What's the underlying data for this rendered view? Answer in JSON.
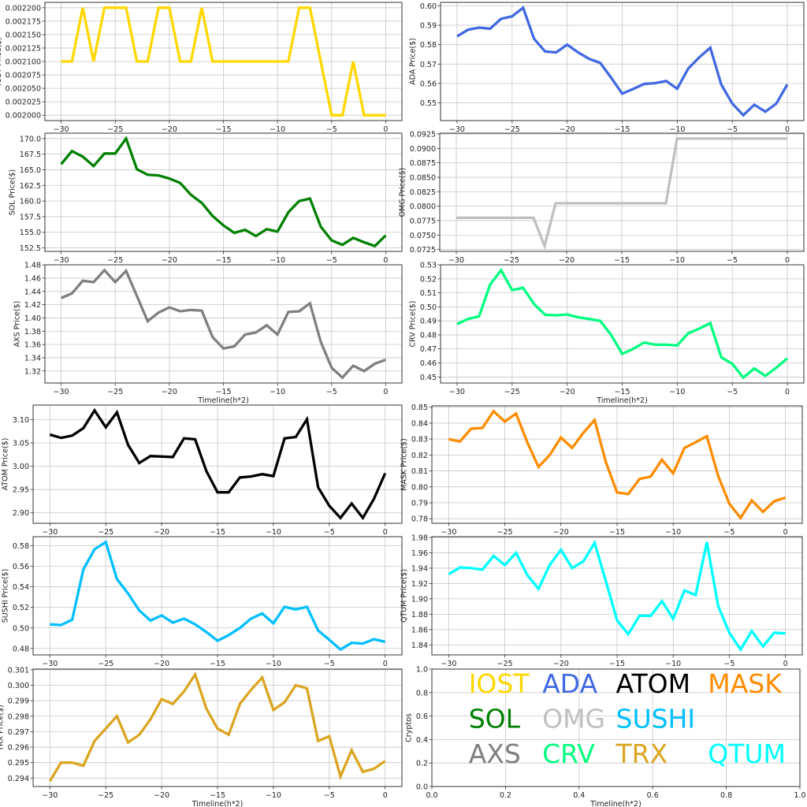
{
  "chart_data": [
    {
      "type": "line",
      "name": "IOST",
      "ylabel": "IOST Price($)",
      "xlabel": "",
      "color": "#FFD700",
      "x": [
        -30,
        -29,
        -28,
        -27,
        -26,
        -25,
        -24,
        -23,
        -22,
        -21,
        -20,
        -19,
        -18,
        -17,
        -16,
        -15,
        -14,
        -13,
        -12,
        -11,
        -10,
        -9,
        -8,
        -7,
        -6,
        -5,
        -4,
        -3,
        -2,
        -1,
        0
      ],
      "y": [
        0.0021,
        0.0021,
        0.0022,
        0.0021,
        0.0022,
        0.0022,
        0.0022,
        0.0021,
        0.0021,
        0.0022,
        0.0022,
        0.0021,
        0.0021,
        0.0022,
        0.0021,
        0.0021,
        0.0021,
        0.0021,
        0.0021,
        0.0021,
        0.0021,
        0.0021,
        0.0022,
        0.0022,
        0.0021,
        0.002,
        0.002,
        0.0021,
        0.002,
        0.002,
        0.002
      ],
      "yticks": [
        "0.002000",
        "0.002025",
        "0.002050",
        "0.002075",
        "0.002100",
        "0.002125",
        "0.002150",
        "0.002175",
        "0.002200"
      ],
      "xticks": [
        "−30",
        "−25",
        "−20",
        "−15",
        "−10",
        "−5",
        "0"
      ]
    },
    {
      "type": "line",
      "name": "ADA",
      "ylabel": "ADA  Price($)",
      "xlabel": "",
      "color": "#4169E1",
      "x": [
        -30,
        -29,
        -28,
        -27,
        -26,
        -25,
        -24,
        -23,
        -22,
        -21,
        -20,
        -19,
        -18,
        -17,
        -16,
        -15,
        -14,
        -13,
        -12,
        -11,
        -10,
        -9,
        -8,
        -7,
        -6,
        -5,
        -4,
        -3,
        -2,
        -1,
        0
      ],
      "y": [
        0.5843,
        0.5877,
        0.5888,
        0.5882,
        0.5933,
        0.5946,
        0.599,
        0.583,
        0.5765,
        0.576,
        0.58,
        0.576,
        0.5727,
        0.5706,
        0.563,
        0.5548,
        0.5572,
        0.5598,
        0.5602,
        0.5613,
        0.5573,
        0.5677,
        0.5735,
        0.5784,
        0.5595,
        0.5497,
        0.5437,
        0.5491,
        0.5455,
        0.5497,
        0.5595
      ],
      "yticks": [
        "0.55",
        "0.56",
        "0.57",
        "0.58",
        "0.59",
        "0.60"
      ],
      "xticks": [
        "−30",
        "−25",
        "−20",
        "−15",
        "−10",
        "−5",
        "0"
      ]
    },
    {
      "type": "line",
      "name": "SOL",
      "ylabel": "SOL Price($)",
      "xlabel": "",
      "color": "#008000",
      "x": [
        -30,
        -29,
        -28,
        -27,
        -26,
        -25,
        -24,
        -23,
        -22,
        -21,
        -20,
        -19,
        -18,
        -17,
        -16,
        -15,
        -14,
        -13,
        -12,
        -11,
        -10,
        -9,
        -8,
        -7,
        -6,
        -5,
        -4,
        -3,
        -2,
        -1,
        0
      ],
      "y": [
        165.9,
        168.0,
        167.1,
        165.6,
        167.6,
        167.6,
        170.0,
        165.1,
        164.2,
        164.1,
        163.6,
        162.9,
        161.0,
        159.7,
        157.6,
        156.1,
        154.9,
        155.4,
        154.4,
        155.5,
        155.1,
        158.2,
        160.0,
        160.4,
        155.9,
        153.7,
        153.0,
        154.1,
        153.4,
        152.8,
        154.5
      ],
      "yticks": [
        "152.5",
        "155.0",
        "157.5",
        "160.0",
        "162.5",
        "165.0",
        "167.5",
        "170.0"
      ],
      "xticks": [
        "−30",
        "−25",
        "−20",
        "−15",
        "−10",
        "−5",
        "0"
      ]
    },
    {
      "type": "line",
      "name": "OMG",
      "ylabel": "OMG  Price($)",
      "xlabel": "",
      "color": "#C0C0C0",
      "x": [
        -30,
        -29,
        -28,
        -27,
        -26,
        -25,
        -24,
        -23,
        -22,
        -21,
        -20,
        -19,
        -18,
        -17,
        -16,
        -15,
        -14,
        -13,
        -12,
        -11,
        -10,
        -9,
        -8,
        -7,
        -6,
        -5,
        -4,
        -3,
        -2,
        -1,
        0
      ],
      "y": [
        0.078,
        0.078,
        0.078,
        0.078,
        0.078,
        0.078,
        0.078,
        0.078,
        0.0731,
        0.0805,
        0.0805,
        0.0805,
        0.0805,
        0.0805,
        0.0805,
        0.0805,
        0.0805,
        0.0805,
        0.0805,
        0.0805,
        0.0917,
        0.0917,
        0.0917,
        0.0917,
        0.0917,
        0.0917,
        0.0917,
        0.0917,
        0.0917,
        0.0917,
        0.0917
      ],
      "yticks": [
        "0.0725",
        "0.0750",
        "0.0775",
        "0.0800",
        "0.0825",
        "0.0850",
        "0.0875",
        "0.0900",
        "0.0925"
      ],
      "xticks": [
        "−30",
        "−25",
        "−20",
        "−15",
        "−10",
        "−5",
        "0"
      ]
    },
    {
      "type": "line",
      "name": "AXS",
      "ylabel": "AXS Price($)",
      "xlabel": "Timeline(h*2)",
      "color": "#808080",
      "x": [
        -30,
        -29,
        -28,
        -27,
        -26,
        -25,
        -24,
        -23,
        -22,
        -21,
        -20,
        -19,
        -18,
        -17,
        -16,
        -15,
        -14,
        -13,
        -12,
        -11,
        -10,
        -9,
        -8,
        -7,
        -6,
        -5,
        -4,
        -3,
        -2,
        -1,
        0
      ],
      "y": [
        1.43,
        1.437,
        1.456,
        1.454,
        1.472,
        1.454,
        1.471,
        1.433,
        1.395,
        1.408,
        1.416,
        1.41,
        1.412,
        1.411,
        1.371,
        1.354,
        1.357,
        1.375,
        1.378,
        1.389,
        1.375,
        1.409,
        1.41,
        1.422,
        1.364,
        1.325,
        1.31,
        1.328,
        1.32,
        1.331,
        1.337
      ],
      "yticks": [
        "1.32",
        "1.34",
        "1.36",
        "1.38",
        "1.40",
        "1.42",
        "1.44",
        "1.46",
        "1.48"
      ],
      "xticks": [
        "−30",
        "−25",
        "−20",
        "−15",
        "−10",
        "−5",
        "0"
      ]
    },
    {
      "type": "line",
      "name": "CRV",
      "ylabel": "CRV  Price($)",
      "xlabel": "Timeline(h*2)",
      "color": "#00FF7F",
      "x": [
        -30,
        -29,
        -28,
        -27,
        -26,
        -25,
        -24,
        -23,
        -22,
        -21,
        -20,
        -19,
        -18,
        -17,
        -16,
        -15,
        -14,
        -13,
        -12,
        -11,
        -10,
        -9,
        -8,
        -7,
        -6,
        -5,
        -4,
        -3,
        -2,
        -1,
        0
      ],
      "y": [
        0.4878,
        0.4914,
        0.4932,
        0.516,
        0.5262,
        0.512,
        0.5136,
        0.502,
        0.4944,
        0.494,
        0.4946,
        0.4926,
        0.4914,
        0.49,
        0.48,
        0.4665,
        0.47,
        0.4746,
        0.473,
        0.473,
        0.4725,
        0.4812,
        0.4845,
        0.4884,
        0.464,
        0.4594,
        0.4495,
        0.456,
        0.4508,
        0.4566,
        0.4633
      ],
      "yticks": [
        "0.45",
        "0.46",
        "0.47",
        "0.48",
        "0.49",
        "0.50",
        "0.51",
        "0.52",
        "0.53"
      ],
      "xticks": [
        "−30",
        "−25",
        "−20",
        "−15",
        "−10",
        "−5",
        "0"
      ]
    },
    {
      "type": "line",
      "name": "ATOM",
      "ylabel": "ATOM  Price($)",
      "xlabel": "",
      "color": "#000000",
      "x": [
        -30,
        -29,
        -28,
        -27,
        -26,
        -25,
        -24,
        -23,
        -22,
        -21,
        -20,
        -19,
        -18,
        -17,
        -16,
        -15,
        -14,
        -13,
        -12,
        -11,
        -10,
        -9,
        -8,
        -7,
        -6,
        -5,
        -4,
        -3,
        -2,
        -1,
        0
      ],
      "y": [
        3.068,
        3.061,
        3.066,
        3.082,
        3.12,
        3.084,
        3.116,
        3.046,
        3.007,
        3.022,
        3.021,
        3.02,
        3.06,
        3.058,
        2.99,
        2.944,
        2.944,
        2.976,
        2.978,
        2.983,
        2.979,
        3.06,
        3.063,
        3.101,
        2.955,
        2.915,
        2.889,
        2.92,
        2.889,
        2.93,
        2.985
      ],
      "yticks": [
        "2.90",
        "2.95",
        "3.00",
        "3.05",
        "3.10"
      ],
      "xticks": [
        "−30",
        "−25",
        "−20",
        "−15",
        "−10",
        "−5",
        "0"
      ]
    },
    {
      "type": "line",
      "name": "MASK",
      "ylabel": "MASK  Price($)",
      "xlabel": "",
      "color": "#FF8C00",
      "x": [
        -30,
        -29,
        -28,
        -27,
        -26,
        -25,
        -24,
        -23,
        -22,
        -21,
        -20,
        -19,
        -18,
        -17,
        -16,
        -15,
        -14,
        -13,
        -12,
        -11,
        -10,
        -9,
        -8,
        -7,
        -6,
        -5,
        -4,
        -3,
        -2,
        -1,
        0
      ],
      "y": [
        0.83,
        0.8285,
        0.8365,
        0.837,
        0.8475,
        0.841,
        0.846,
        0.828,
        0.8125,
        0.82,
        0.831,
        0.8245,
        0.834,
        0.842,
        0.8155,
        0.7965,
        0.7955,
        0.805,
        0.8065,
        0.817,
        0.8085,
        0.8245,
        0.828,
        0.8318,
        0.807,
        0.7895,
        0.7805,
        0.7915,
        0.7843,
        0.791,
        0.7932
      ],
      "yticks": [
        "0.78",
        "0.79",
        "0.80",
        "0.81",
        "0.82",
        "0.83",
        "0.84",
        "0.85"
      ],
      "xticks": [
        "−30",
        "−25",
        "−20",
        "−15",
        "−10",
        "−5",
        "0"
      ]
    },
    {
      "type": "line",
      "name": "SUSHI",
      "ylabel": "SUSHI  Price($)",
      "xlabel": "",
      "color": "#00BFFF",
      "x": [
        -30,
        -29,
        -28,
        -27,
        -26,
        -25,
        -24,
        -23,
        -22,
        -21,
        -20,
        -19,
        -18,
        -17,
        -16,
        -15,
        -14,
        -13,
        -12,
        -11,
        -10,
        -9,
        -8,
        -7,
        -6,
        -5,
        -4,
        -3,
        -2,
        -1,
        0
      ],
      "y": [
        0.5035,
        0.5028,
        0.508,
        0.557,
        0.5765,
        0.5835,
        0.5475,
        0.5335,
        0.517,
        0.5072,
        0.5122,
        0.5052,
        0.509,
        0.5035,
        0.496,
        0.4875,
        0.493,
        0.5,
        0.509,
        0.514,
        0.5045,
        0.5205,
        0.518,
        0.5205,
        0.4975,
        0.4885,
        0.479,
        0.4855,
        0.4848,
        0.489,
        0.4865
      ],
      "yticks": [
        "0.48",
        "0.50",
        "0.52",
        "0.54",
        "0.56",
        "0.58"
      ],
      "xticks": [
        "−30",
        "−25",
        "−20",
        "−15",
        "−10",
        "−5",
        "0"
      ]
    },
    {
      "type": "line",
      "name": "QTUM",
      "ylabel": "QTUM Price($)",
      "xlabel": "",
      "color": "#00FFFF",
      "x": [
        -30,
        -29,
        -28,
        -27,
        -26,
        -25,
        -24,
        -23,
        -22,
        -21,
        -20,
        -19,
        -18,
        -17,
        -16,
        -15,
        -14,
        -13,
        -12,
        -11,
        -10,
        -9,
        -8,
        -7,
        -6,
        -5,
        -4,
        -3,
        -2,
        -1,
        0
      ],
      "y": [
        1.932,
        1.941,
        1.94,
        1.938,
        1.956,
        1.944,
        1.96,
        1.931,
        1.913,
        1.944,
        1.964,
        1.94,
        1.949,
        1.973,
        1.923,
        1.872,
        1.854,
        1.878,
        1.878,
        1.897,
        1.874,
        1.911,
        1.905,
        1.974,
        1.891,
        1.856,
        1.834,
        1.858,
        1.838,
        1.856,
        1.855
      ],
      "yticks": [
        "1.84",
        "1.86",
        "1.88",
        "1.90",
        "1.92",
        "1.94",
        "1.96",
        "1.98"
      ],
      "xticks": [
        "−30",
        "−25",
        "−20",
        "−15",
        "−10",
        "−5",
        "0"
      ]
    },
    {
      "type": "line",
      "name": "TRX",
      "ylabel": "TRX Price($)",
      "xlabel": "Timeline(h*2)",
      "color": "#DAA520",
      "x": [
        -30,
        -29,
        -28,
        -27,
        -26,
        -25,
        -24,
        -23,
        -22,
        -21,
        -20,
        -19,
        -18,
        -17,
        -16,
        -15,
        -14,
        -13,
        -12,
        -11,
        -10,
        -9,
        -8,
        -7,
        -6,
        -5,
        -4,
        -3,
        -2,
        -1,
        0
      ],
      "y": [
        0.2938,
        0.295,
        0.295,
        0.2948,
        0.2964,
        0.2972,
        0.298,
        0.2963,
        0.2968,
        0.2978,
        0.2991,
        0.2988,
        0.2996,
        0.3007,
        0.2985,
        0.2972,
        0.2968,
        0.2988,
        0.2997,
        0.3005,
        0.2984,
        0.2989,
        0.3,
        0.2998,
        0.2964,
        0.2967,
        0.2941,
        0.2958,
        0.2944,
        0.2946,
        0.2951
      ],
      "yticks": [
        "0.294",
        "0.295",
        "0.296",
        "0.297",
        "0.298",
        "0.299",
        "0.300",
        "0.301"
      ],
      "xticks": [
        "−30",
        "−25",
        "−20",
        "−15",
        "−10",
        "−5",
        "0"
      ]
    },
    {
      "type": "text-legend",
      "name": "legend",
      "ylabel": "Cryptos",
      "xlabel": "Timeline(h*2)",
      "xlim": [
        0,
        1
      ],
      "ylim": [
        0,
        1
      ],
      "yticks": [
        "0.0",
        "0.2",
        "0.4",
        "0.6",
        "0.8",
        "1.0"
      ],
      "xticks": [
        "0.0",
        "0.2",
        "0.4",
        "0.6",
        "0.8",
        "1.0"
      ],
      "entries": [
        {
          "label": "IOST",
          "x": 0.1,
          "y": 0.8,
          "color": "#FFD700"
        },
        {
          "label": "ADA",
          "x": 0.3,
          "y": 0.8,
          "color": "#4169E1"
        },
        {
          "label": "ATOM",
          "x": 0.5,
          "y": 0.8,
          "color": "#000000"
        },
        {
          "label": "MASK",
          "x": 0.75,
          "y": 0.8,
          "color": "#FF8C00"
        },
        {
          "label": "SOL",
          "x": 0.1,
          "y": 0.5,
          "color": "#008000"
        },
        {
          "label": "OMG",
          "x": 0.3,
          "y": 0.5,
          "color": "#C0C0C0"
        },
        {
          "label": "SUSHI",
          "x": 0.5,
          "y": 0.5,
          "color": "#00BFFF"
        },
        {
          "label": "AXS",
          "x": 0.1,
          "y": 0.2,
          "color": "#808080"
        },
        {
          "label": "CRV",
          "x": 0.3,
          "y": 0.2,
          "color": "#00FF7F"
        },
        {
          "label": "TRX",
          "x": 0.5,
          "y": 0.2,
          "color": "#DAA520"
        },
        {
          "label": "QTUM",
          "x": 0.75,
          "y": 0.2,
          "color": "#00FFFF"
        }
      ]
    }
  ]
}
